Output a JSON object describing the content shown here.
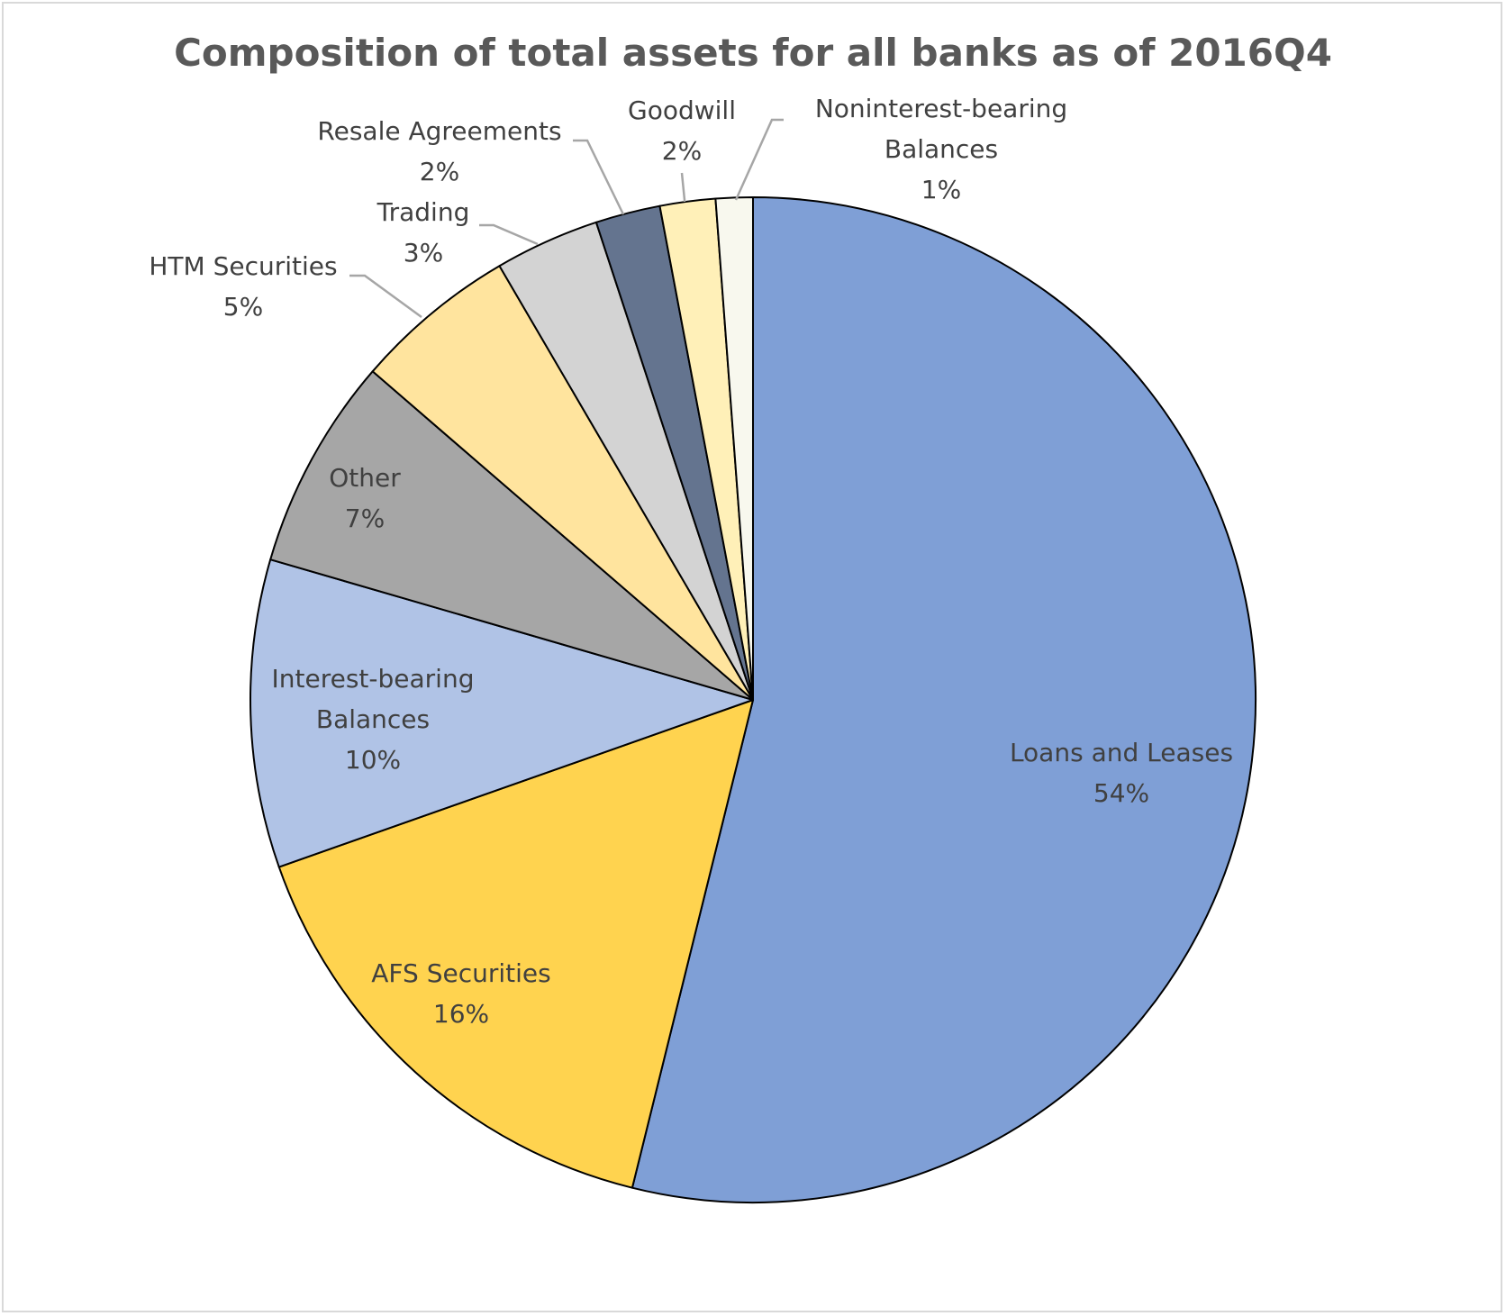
{
  "chart_data": {
    "type": "pie",
    "title": "Composition of total assets for all banks as of 2016Q4",
    "start_angle_deg": 0,
    "direction": "clockwise",
    "slices": [
      {
        "name": "Loans and Leases",
        "label_lines": [
          "Loans and Leases"
        ],
        "percent_label": "54%",
        "value": 54.4,
        "color": "#7f9fd6"
      },
      {
        "name": "AFS Securities",
        "label_lines": [
          "AFS Securities"
        ],
        "percent_label": "16%",
        "value": 15.9,
        "color": "#ffd34f"
      },
      {
        "name": "Interest-bearing Balances",
        "label_lines": [
          "Interest-bearing",
          "Balances"
        ],
        "percent_label": "10%",
        "value": 10.0,
        "color": "#b0c3e6"
      },
      {
        "name": "Other",
        "label_lines": [
          "Other"
        ],
        "percent_label": "7%",
        "value": 6.9,
        "color": "#a6a6a6"
      },
      {
        "name": "HTM Securities",
        "label_lines": [
          "HTM Securities"
        ],
        "percent_label": "5%",
        "value": 5.3,
        "color": "#ffe49e"
      },
      {
        "name": "Trading",
        "label_lines": [
          "Trading"
        ],
        "percent_label": "3%",
        "value": 3.4,
        "color": "#d3d3d3"
      },
      {
        "name": "Resale Agreements",
        "label_lines": [
          "Resale Agreements"
        ],
        "percent_label": "2%",
        "value": 2.1,
        "color": "#64748f"
      },
      {
        "name": "Goodwill",
        "label_lines": [
          "Goodwill"
        ],
        "percent_label": "2%",
        "value": 1.8,
        "color": "#fff0b8"
      },
      {
        "name": "Noninterest-bearing Balances",
        "label_lines": [
          "Noninterest-bearing",
          "Balances"
        ],
        "percent_label": "1%",
        "value": 1.2,
        "color": "#f8f8ee"
      }
    ]
  }
}
